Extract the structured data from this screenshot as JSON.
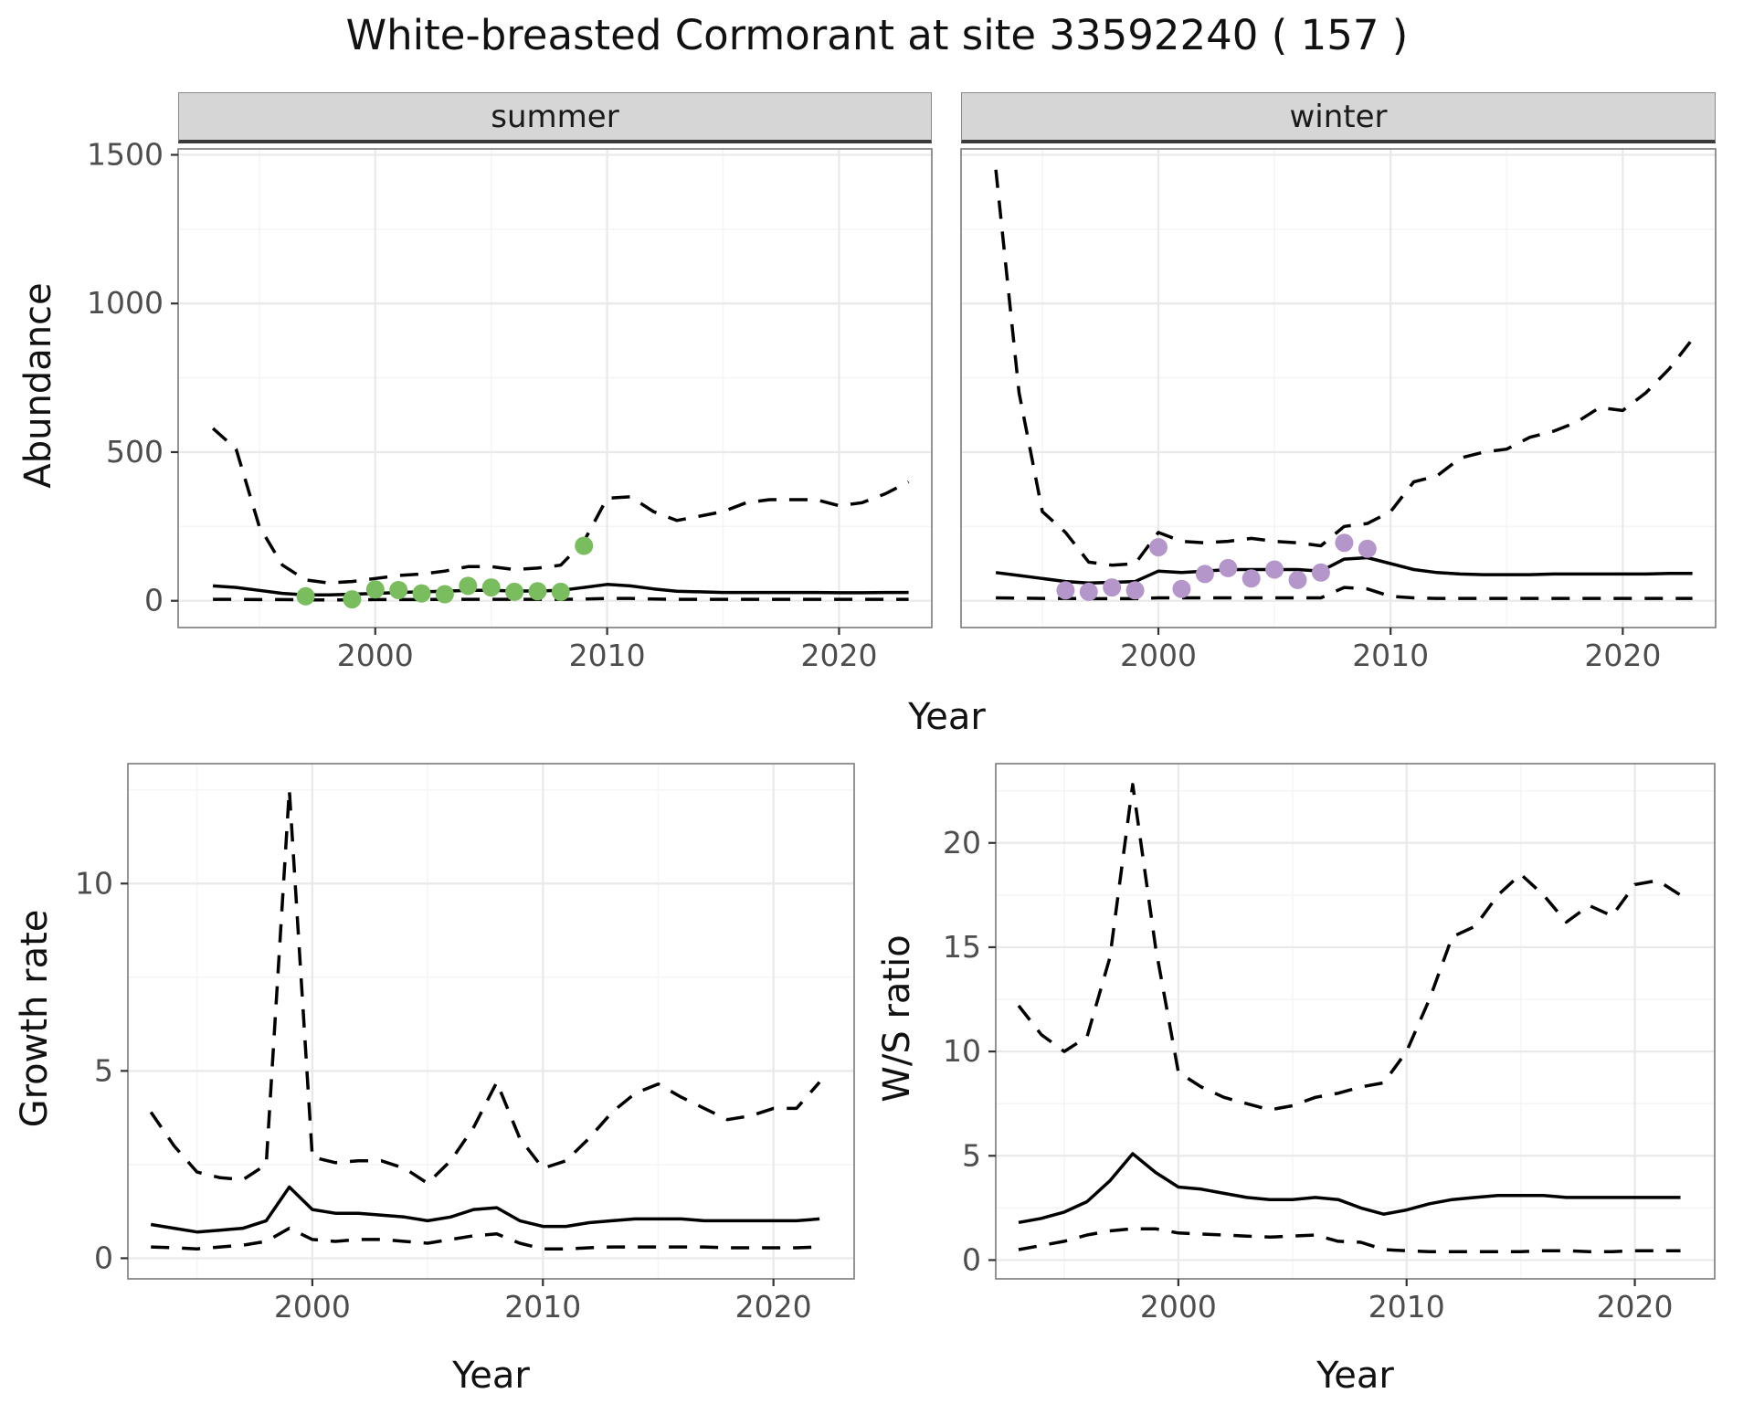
{
  "title": "White-breasted Cormorant at site 33592240 ( 157 )",
  "colors": {
    "line": "#000000",
    "summer_point": "#7abd5e",
    "winter_point": "#b496cb",
    "strip_bg": "#d6d6d6",
    "grid_major": "#e9e9e9",
    "grid_minor": "#f5f5f5",
    "panel_border": "#7a7a7a",
    "axis_text": "#4d4d4d",
    "tick_mark": "#333333"
  },
  "chart_data": [
    {
      "id": "abundance-summer",
      "type": "line",
      "facet": "summer",
      "xlabel": "Year",
      "ylabel": "Abundance",
      "xlim": [
        1991.5,
        2024
      ],
      "ylim": [
        -90,
        1520
      ],
      "xticks": [
        2000,
        2010,
        2020
      ],
      "yticks": [
        0,
        500,
        1000,
        1500
      ],
      "grid": true,
      "x": [
        1993,
        1994,
        1995,
        1996,
        1997,
        1998,
        1999,
        2000,
        2001,
        2002,
        2003,
        2004,
        2005,
        2006,
        2007,
        2008,
        2009,
        2010,
        2011,
        2012,
        2013,
        2014,
        2015,
        2016,
        2017,
        2018,
        2019,
        2020,
        2021,
        2022,
        2023
      ],
      "series": [
        {
          "name": "upper-credible",
          "style": "dashed",
          "y": [
            580,
            510,
            250,
            120,
            70,
            60,
            65,
            75,
            85,
            90,
            100,
            115,
            115,
            105,
            110,
            120,
            200,
            345,
            350,
            300,
            270,
            285,
            300,
            330,
            340,
            340,
            340,
            320,
            330,
            360,
            400
          ]
        },
        {
          "name": "median",
          "style": "solid",
          "y": [
            50,
            45,
            35,
            25,
            20,
            20,
            22,
            25,
            28,
            30,
            32,
            35,
            35,
            33,
            33,
            35,
            45,
            55,
            50,
            40,
            32,
            30,
            28,
            28,
            28,
            28,
            28,
            27,
            27,
            28,
            28
          ]
        },
        {
          "name": "lower-credible",
          "style": "dashed",
          "y": [
            5,
            5,
            4,
            4,
            3,
            3,
            3,
            4,
            4,
            4,
            5,
            5,
            5,
            5,
            5,
            5,
            6,
            8,
            8,
            6,
            5,
            5,
            5,
            5,
            5,
            5,
            5,
            5,
            5,
            5,
            5
          ]
        }
      ],
      "points": {
        "name": "observed-counts",
        "color": "#7abd5e",
        "x": [
          1997,
          1999,
          2000,
          2001,
          2002,
          2003,
          2004,
          2005,
          2006,
          2007,
          2008,
          2009
        ],
        "y": [
          15,
          5,
          38,
          36,
          25,
          22,
          50,
          45,
          30,
          32,
          30,
          185
        ]
      }
    },
    {
      "id": "abundance-winter",
      "type": "line",
      "facet": "winter",
      "xlabel": "Year",
      "ylabel": "Abundance",
      "xlim": [
        1991.5,
        2024
      ],
      "ylim": [
        -90,
        1520
      ],
      "xticks": [
        2000,
        2010,
        2020
      ],
      "yticks": [
        0,
        500,
        1000,
        1500
      ],
      "grid": true,
      "x": [
        1993,
        1994,
        1995,
        1996,
        1997,
        1998,
        1999,
        2000,
        2001,
        2002,
        2003,
        2004,
        2005,
        2006,
        2007,
        2008,
        2009,
        2010,
        2011,
        2012,
        2013,
        2014,
        2015,
        2016,
        2017,
        2018,
        2019,
        2020,
        2021,
        2022,
        2023
      ],
      "series": [
        {
          "name": "upper-credible",
          "style": "dashed",
          "y": [
            1450,
            700,
            300,
            230,
            130,
            120,
            125,
            230,
            200,
            195,
            200,
            210,
            200,
            195,
            185,
            250,
            260,
            300,
            400,
            420,
            480,
            500,
            510,
            550,
            570,
            600,
            650,
            640,
            700,
            780,
            880
          ]
        },
        {
          "name": "median",
          "style": "solid",
          "y": [
            95,
            85,
            75,
            65,
            60,
            62,
            65,
            100,
            95,
            100,
            105,
            105,
            105,
            105,
            100,
            140,
            145,
            125,
            105,
            95,
            90,
            88,
            88,
            88,
            90,
            90,
            90,
            90,
            90,
            92,
            92
          ]
        },
        {
          "name": "lower-credible",
          "style": "dashed",
          "y": [
            10,
            9,
            8,
            8,
            7,
            7,
            7,
            10,
            10,
            10,
            10,
            10,
            10,
            10,
            10,
            45,
            40,
            15,
            10,
            8,
            8,
            8,
            8,
            8,
            8,
            8,
            8,
            8,
            8,
            8,
            8
          ]
        }
      ],
      "points": {
        "name": "observed-counts",
        "color": "#b496cb",
        "x": [
          1996,
          1997,
          1998,
          1999,
          2000,
          2001,
          2002,
          2003,
          2004,
          2005,
          2006,
          2007,
          2008,
          2009
        ],
        "y": [
          35,
          30,
          45,
          35,
          180,
          40,
          90,
          110,
          75,
          105,
          70,
          95,
          195,
          175
        ]
      }
    },
    {
      "id": "growth-rate",
      "type": "line",
      "xlabel": "Year",
      "ylabel": "Growth rate",
      "xlim": [
        1992,
        2023.5
      ],
      "ylim": [
        -0.55,
        13.2
      ],
      "xticks": [
        2000,
        2010,
        2020
      ],
      "yticks": [
        0,
        5,
        10
      ],
      "grid": true,
      "x": [
        1993,
        1994,
        1995,
        1996,
        1997,
        1998,
        1999,
        2000,
        2001,
        2002,
        2003,
        2004,
        2005,
        2006,
        2007,
        2008,
        2009,
        2010,
        2011,
        2012,
        2013,
        2014,
        2015,
        2016,
        2017,
        2018,
        2019,
        2020,
        2021,
        2022
      ],
      "series": [
        {
          "name": "upper-credible",
          "style": "dashed",
          "y": [
            3.9,
            3.0,
            2.3,
            2.15,
            2.1,
            2.5,
            12.5,
            2.7,
            2.55,
            2.6,
            2.6,
            2.4,
            2.0,
            2.6,
            3.5,
            4.7,
            3.2,
            2.4,
            2.6,
            3.2,
            3.9,
            4.4,
            4.65,
            4.3,
            4.0,
            3.7,
            3.8,
            4.0,
            4.0,
            4.7
          ]
        },
        {
          "name": "median",
          "style": "solid",
          "y": [
            0.9,
            0.8,
            0.7,
            0.75,
            0.8,
            1.0,
            1.9,
            1.3,
            1.2,
            1.2,
            1.15,
            1.1,
            1.0,
            1.1,
            1.3,
            1.35,
            1.0,
            0.85,
            0.85,
            0.95,
            1.0,
            1.05,
            1.05,
            1.05,
            1.0,
            1.0,
            1.0,
            1.0,
            1.0,
            1.05
          ]
        },
        {
          "name": "lower-credible",
          "style": "dashed",
          "y": [
            0.3,
            0.28,
            0.25,
            0.3,
            0.35,
            0.45,
            0.8,
            0.5,
            0.45,
            0.5,
            0.5,
            0.45,
            0.4,
            0.5,
            0.6,
            0.65,
            0.4,
            0.25,
            0.25,
            0.28,
            0.3,
            0.3,
            0.3,
            0.3,
            0.3,
            0.28,
            0.28,
            0.28,
            0.28,
            0.3
          ]
        }
      ]
    },
    {
      "id": "ws-ratio",
      "type": "line",
      "xlabel": "Year",
      "ylabel": "W/S ratio",
      "xlim": [
        1992,
        2023.5
      ],
      "ylim": [
        -0.9,
        23.8
      ],
      "xticks": [
        2000,
        2010,
        2020
      ],
      "yticks": [
        0,
        5,
        10,
        15,
        20
      ],
      "grid": true,
      "x": [
        1993,
        1994,
        1995,
        1996,
        1997,
        1998,
        1999,
        2000,
        2001,
        2002,
        2003,
        2004,
        2005,
        2006,
        2007,
        2008,
        2009,
        2010,
        2011,
        2012,
        2013,
        2014,
        2015,
        2016,
        2017,
        2018,
        2019,
        2020,
        2021,
        2022
      ],
      "series": [
        {
          "name": "upper-credible",
          "style": "dashed",
          "y": [
            12.2,
            10.8,
            10.0,
            10.7,
            14.5,
            22.8,
            15.0,
            9.0,
            8.3,
            7.8,
            7.5,
            7.2,
            7.4,
            7.8,
            8.0,
            8.3,
            8.5,
            10.0,
            12.5,
            15.5,
            16.0,
            17.5,
            18.5,
            17.5,
            16.2,
            17.0,
            16.5,
            18.0,
            18.2,
            17.5
          ]
        },
        {
          "name": "median",
          "style": "solid",
          "y": [
            1.8,
            2.0,
            2.3,
            2.8,
            3.8,
            5.1,
            4.2,
            3.5,
            3.4,
            3.2,
            3.0,
            2.9,
            2.9,
            3.0,
            2.9,
            2.5,
            2.2,
            2.4,
            2.7,
            2.9,
            3.0,
            3.1,
            3.1,
            3.1,
            3.0,
            3.0,
            3.0,
            3.0,
            3.0,
            3.0
          ]
        },
        {
          "name": "lower-credible",
          "style": "dashed",
          "y": [
            0.5,
            0.7,
            0.9,
            1.2,
            1.4,
            1.5,
            1.5,
            1.3,
            1.25,
            1.2,
            1.15,
            1.1,
            1.15,
            1.2,
            0.9,
            0.85,
            0.5,
            0.45,
            0.4,
            0.4,
            0.4,
            0.4,
            0.4,
            0.45,
            0.45,
            0.4,
            0.4,
            0.45,
            0.45,
            0.45
          ]
        }
      ]
    }
  ]
}
